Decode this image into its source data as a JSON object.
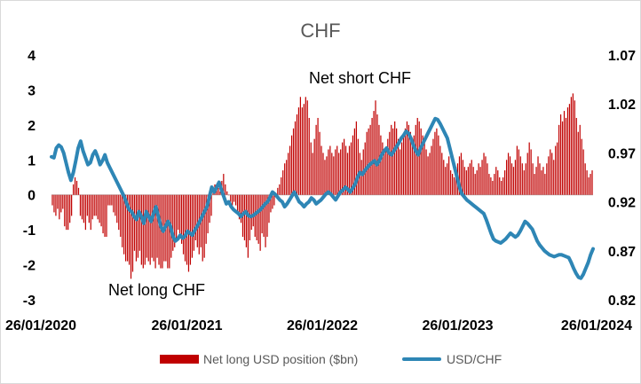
{
  "chart_data": {
    "type": "bar",
    "title": "CHF",
    "xlabel": "",
    "ylabel": "",
    "x_tick_labels": [
      "26/01/2020",
      "26/01/2021",
      "26/01/2022",
      "26/01/2023",
      "26/01/2024"
    ],
    "y_left_ticks": [
      "4",
      "3",
      "2",
      "1",
      "0",
      "-1",
      "-2",
      "-3"
    ],
    "y_right_ticks": [
      "1.07",
      "1.02",
      "0.97",
      "0.92",
      "0.87",
      "0.82"
    ],
    "ylim_left": [
      -3,
      4
    ],
    "ylim_right": [
      0.82,
      1.07
    ],
    "grid": false,
    "legend_position": "bottom",
    "annotations": [
      "Net short CHF",
      "Net long CHF"
    ],
    "colors": {
      "bars": "#c00000",
      "line": "#2e86b5",
      "title": "#595959",
      "legend_text": "#595959"
    },
    "series": [
      {
        "name": "Net long USD position ($bn)",
        "kind": "bar",
        "axis": "left",
        "values": [
          -0.3,
          -0.5,
          -0.6,
          -0.4,
          -0.7,
          -0.5,
          -0.4,
          -0.9,
          -1.0,
          -1.0,
          -0.8,
          -0.6,
          0.3,
          0.5,
          0.4,
          0.2,
          -0.6,
          -0.7,
          -0.8,
          -1.0,
          -0.6,
          -0.8,
          -1.0,
          -0.7,
          -0.6,
          -0.6,
          -0.7,
          -0.8,
          -0.9,
          -1.1,
          -1.2,
          -1.2,
          -0.3,
          -0.3,
          -0.3,
          -0.5,
          -0.6,
          -0.8,
          -1.0,
          -1.2,
          -1.5,
          -1.7,
          -1.9,
          -1.9,
          -2.0,
          -2.4,
          -2.2,
          -1.6,
          -1.9,
          -1.8,
          -1.6,
          -2.0,
          -2.1,
          -2.0,
          -1.8,
          -1.9,
          -2.0,
          -1.8,
          -1.9,
          -2.1,
          -1.8,
          -2.0,
          -2.1,
          -2.1,
          -1.9,
          -1.9,
          -2.1,
          -2.1,
          -1.8,
          -1.6,
          -1.5,
          -1.3,
          -1.0,
          -1.1,
          -1.4,
          -1.7,
          -1.9,
          -2.0,
          -2.2,
          -2.0,
          -1.8,
          -1.6,
          -1.3,
          -1.5,
          -1.7,
          -1.5,
          -1.9,
          -1.8,
          -1.4,
          -1.1,
          -0.8,
          -0.6,
          0.2,
          0.3,
          0.3,
          0.2,
          0.1,
          0.4,
          0.6,
          0.3,
          0.1,
          0.0,
          -0.2,
          -0.3,
          -0.2,
          -0.3,
          -0.5,
          -0.7,
          -0.8,
          -1.2,
          -1.3,
          -1.5,
          -1.8,
          -1.3,
          -1.0,
          -0.9,
          -1.2,
          -1.3,
          -1.4,
          -1.6,
          -1.1,
          -1.2,
          -1.5,
          -1.2,
          -0.8,
          -0.5,
          -0.4,
          -0.3,
          0.0,
          0.2,
          0.3,
          0.5,
          0.7,
          0.9,
          1.0,
          1.2,
          1.4,
          1.7,
          1.9,
          2.1,
          2.3,
          2.5,
          2.8,
          2.5,
          2.6,
          2.8,
          2.7,
          2.2,
          1.5,
          1.2,
          1.6,
          2.0,
          2.2,
          1.8,
          1.4,
          1.2,
          1.0,
          1.1,
          1.3,
          1.4,
          1.2,
          1.1,
          1.3,
          1.4,
          1.2,
          1.3,
          1.5,
          1.6,
          1.4,
          1.2,
          1.4,
          1.5,
          1.7,
          1.9,
          2.1,
          1.6,
          1.2,
          1.0,
          1.3,
          1.5,
          1.8,
          1.9,
          2.0,
          2.2,
          2.4,
          2.7,
          2.3,
          2.0,
          1.7,
          1.5,
          1.2,
          1.3,
          1.6,
          1.8,
          2.0,
          1.9,
          2.1,
          1.9,
          1.6,
          1.3,
          1.5,
          1.7,
          1.9,
          2.1,
          2.0,
          1.8,
          1.5,
          1.7,
          2.0,
          2.2,
          2.1,
          1.9,
          1.7,
          1.5,
          1.3,
          1.1,
          1.2,
          1.4,
          1.6,
          1.8,
          1.9,
          1.7,
          1.4,
          1.2,
          1.0,
          0.8,
          0.9,
          1.1,
          0.7,
          0.6,
          0.5,
          0.8,
          0.9,
          1.1,
          1.2,
          1.0,
          0.8,
          0.7,
          0.8,
          0.9,
          1.0,
          0.8,
          0.6,
          0.7,
          0.9,
          0.8,
          1.0,
          1.2,
          1.1,
          0.9,
          0.6,
          0.5,
          0.4,
          0.6,
          0.8,
          0.7,
          0.5,
          0.4,
          0.5,
          0.7,
          1.0,
          1.2,
          1.1,
          0.9,
          0.8,
          1.0,
          1.4,
          1.3,
          1.1,
          0.9,
          0.7,
          0.9,
          1.2,
          1.5,
          1.3,
          0.9,
          0.6,
          0.8,
          1.1,
          0.9,
          0.7,
          0.8,
          0.6,
          0.9,
          1.1,
          1.3,
          1.2,
          1.0,
          1.4,
          1.5,
          2.0,
          2.3,
          2.1,
          2.4,
          2.2,
          2.5,
          2.6,
          2.8,
          2.9,
          2.7,
          2.2,
          1.8,
          2.0,
          1.6,
          1.3,
          0.9,
          0.7,
          0.5,
          0.6,
          0.7
        ]
      },
      {
        "name": "USD/CHF",
        "kind": "line",
        "axis": "right",
        "values": [
          0.966,
          0.965,
          0.975,
          0.978,
          0.976,
          0.97,
          0.96,
          0.95,
          0.942,
          0.95,
          0.962,
          0.975,
          0.982,
          0.972,
          0.965,
          0.958,
          0.96,
          0.968,
          0.972,
          0.966,
          0.958,
          0.962,
          0.968,
          0.96,
          0.955,
          0.95,
          0.945,
          0.94,
          0.935,
          0.93,
          0.925,
          0.918,
          0.912,
          0.91,
          0.905,
          0.902,
          0.91,
          0.905,
          0.898,
          0.91,
          0.905,
          0.9,
          0.908,
          0.915,
          0.905,
          0.895,
          0.89,
          0.895,
          0.9,
          0.895,
          0.885,
          0.88,
          0.882,
          0.886,
          0.883,
          0.885,
          0.89,
          0.888,
          0.886,
          0.891,
          0.895,
          0.9,
          0.905,
          0.91,
          0.915,
          0.925,
          0.935,
          0.93,
          0.935,
          0.94,
          0.932,
          0.925,
          0.918,
          0.92,
          0.915,
          0.912,
          0.91,
          0.908,
          0.905,
          0.908,
          0.91,
          0.906,
          0.905,
          0.906,
          0.908,
          0.91,
          0.912,
          0.915,
          0.918,
          0.92,
          0.925,
          0.93,
          0.928,
          0.925,
          0.922,
          0.92,
          0.915,
          0.918,
          0.922,
          0.926,
          0.93,
          0.925,
          0.92,
          0.918,
          0.915,
          0.918,
          0.92,
          0.924,
          0.922,
          0.918,
          0.92,
          0.922,
          0.925,
          0.928,
          0.93,
          0.928,
          0.925,
          0.922,
          0.926,
          0.93,
          0.932,
          0.935,
          0.933,
          0.93,
          0.934,
          0.938,
          0.945,
          0.95,
          0.948,
          0.952,
          0.955,
          0.958,
          0.96,
          0.962,
          0.958,
          0.962,
          0.968,
          0.972,
          0.975,
          0.97,
          0.968,
          0.972,
          0.976,
          0.98,
          0.985,
          0.988,
          0.992,
          0.99,
          0.985,
          0.978,
          0.972,
          0.968,
          0.975,
          0.98,
          0.985,
          0.99,
          0.995,
          1.0,
          1.005,
          1.004,
          1.0,
          0.995,
          0.99,
          0.985,
          0.975,
          0.965,
          0.955,
          0.945,
          0.935,
          0.928,
          0.925,
          0.922,
          0.92,
          0.918,
          0.916,
          0.914,
          0.912,
          0.91,
          0.908,
          0.902,
          0.895,
          0.888,
          0.882,
          0.88,
          0.879,
          0.878,
          0.88,
          0.882,
          0.885,
          0.888,
          0.886,
          0.884,
          0.886,
          0.89,
          0.895,
          0.9,
          0.898,
          0.895,
          0.892,
          0.886,
          0.88,
          0.876,
          0.873,
          0.87,
          0.868,
          0.866,
          0.865,
          0.864,
          0.865,
          0.866,
          0.866,
          0.865,
          0.864,
          0.863,
          0.858,
          0.852,
          0.847,
          0.843,
          0.842,
          0.846,
          0.852,
          0.858,
          0.866,
          0.872
        ]
      }
    ]
  }
}
